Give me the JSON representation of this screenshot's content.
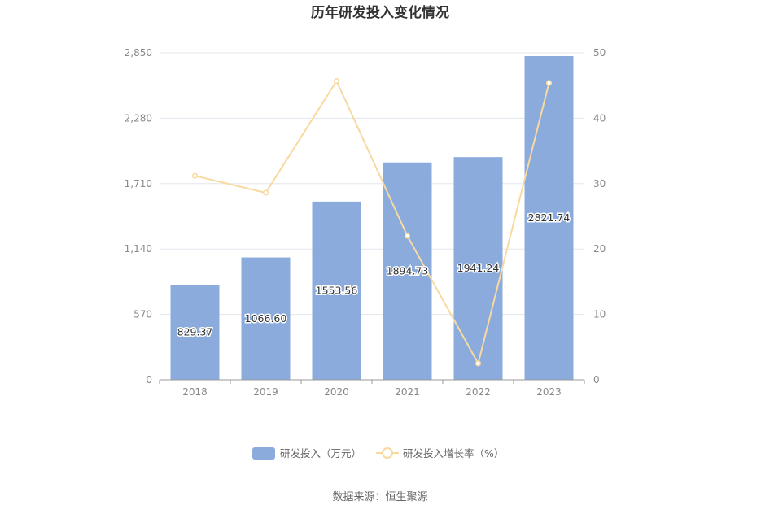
{
  "chart_data": {
    "type": "bar",
    "title": "历年研发投入变化情况",
    "categories": [
      "2018",
      "2019",
      "2020",
      "2021",
      "2022",
      "2023"
    ],
    "series": [
      {
        "name": "研发投入（万元）",
        "type": "bar",
        "axis": "left",
        "values": [
          829.37,
          1066.6,
          1553.56,
          1894.73,
          1941.24,
          2821.74
        ],
        "labels": [
          "829.37",
          "1066.60",
          "1553.56",
          "1894.73",
          "1941.24",
          "2821.74"
        ],
        "color": "#8aabdb"
      },
      {
        "name": "研发投入增长率（%）",
        "type": "line",
        "axis": "right",
        "values": [
          31.2,
          28.6,
          45.7,
          22.0,
          2.5,
          45.4
        ],
        "color": "#f8d9a0"
      }
    ],
    "y_left": {
      "min": 0,
      "max": 2850,
      "ticks": [
        "0",
        "570",
        "1,140",
        "1,710",
        "2,280",
        "2,850"
      ]
    },
    "y_right": {
      "min": 0,
      "max": 50,
      "ticks": [
        "0",
        "10",
        "20",
        "30",
        "40",
        "50"
      ]
    },
    "grid": true,
    "legend_position": "bottom"
  },
  "source": "数据来源：恒生聚源"
}
